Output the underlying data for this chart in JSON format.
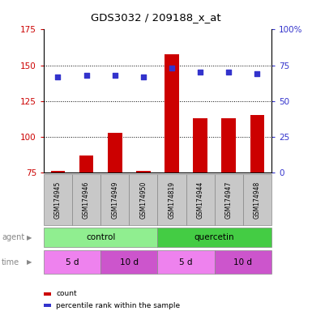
{
  "title": "GDS3032 / 209188_x_at",
  "samples": [
    "GSM174945",
    "GSM174946",
    "GSM174949",
    "GSM174950",
    "GSM174819",
    "GSM174944",
    "GSM174947",
    "GSM174948"
  ],
  "counts": [
    76,
    87,
    103,
    76,
    158,
    113,
    113,
    115
  ],
  "percentile_ranks": [
    67,
    68,
    68,
    67,
    73,
    70,
    70,
    69
  ],
  "ylim_left": [
    75,
    175
  ],
  "ylim_right": [
    0,
    100
  ],
  "yticks_left": [
    75,
    100,
    125,
    150,
    175
  ],
  "yticks_right": [
    0,
    25,
    50,
    75,
    100
  ],
  "grid_values": [
    100,
    125,
    150
  ],
  "agent_groups": [
    {
      "label": "control",
      "start": 0,
      "end": 4,
      "color": "#90EE90"
    },
    {
      "label": "quercetin",
      "start": 4,
      "end": 8,
      "color": "#44CC44"
    }
  ],
  "time_groups": [
    {
      "label": "5 d",
      "start": 0,
      "end": 2,
      "color": "#EE82EE"
    },
    {
      "label": "10 d",
      "start": 2,
      "end": 4,
      "color": "#CC55CC"
    },
    {
      "label": "5 d",
      "start": 4,
      "end": 6,
      "color": "#EE82EE"
    },
    {
      "label": "10 d",
      "start": 6,
      "end": 8,
      "color": "#CC55CC"
    }
  ],
  "bar_color": "#CC0000",
  "dot_color": "#3333CC",
  "sample_bg_color": "#C8C8C8",
  "left_axis_color": "#CC0000",
  "right_axis_color": "#3333CC",
  "legend_items": [
    {
      "color": "#CC0000",
      "label": "count"
    },
    {
      "color": "#3333CC",
      "label": "percentile rank within the sample"
    }
  ]
}
